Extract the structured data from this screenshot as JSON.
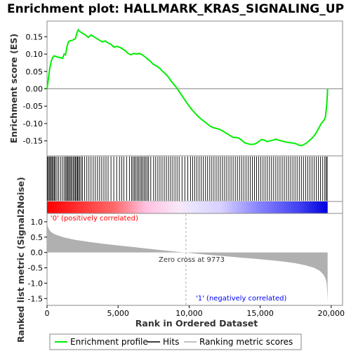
{
  "chart_data": [
    {
      "type": "line",
      "title": "Enrichment plot: HALLMARK_KRAS_SIGNALING_UP",
      "ylabel": "Enrichment score (ES)",
      "xlim": [
        0,
        20800
      ],
      "ylim": [
        -0.185,
        0.185
      ],
      "yticks": [
        "0.15",
        "0.10",
        "0.05",
        "0.00",
        "-0.05",
        "-0.10",
        "-0.15"
      ],
      "ytick_values": [
        0.15,
        0.1,
        0.05,
        0.0,
        -0.05,
        -0.1,
        -0.15
      ],
      "grid": false,
      "series": [
        {
          "name": "Enrichment profile",
          "color": "#00ee00",
          "x": [
            0,
            100,
            200,
            300,
            400,
            500,
            700,
            900,
            1100,
            1200,
            1300,
            1400,
            1500,
            1600,
            1800,
            2000,
            2100,
            2200,
            2300,
            2500,
            2700,
            2900,
            3100,
            3300,
            3500,
            3700,
            3900,
            4100,
            4300,
            4500,
            4700,
            4900,
            5100,
            5300,
            5500,
            5700,
            5900,
            6100,
            6300,
            6500,
            6700,
            6900,
            7100,
            7300,
            7500,
            7700,
            7900,
            8100,
            8300,
            8500,
            8700,
            8900,
            9100,
            9300,
            9500,
            9700,
            9900,
            10100,
            10300,
            10500,
            10700,
            10900,
            11100,
            11300,
            11500,
            11700,
            11900,
            12100,
            12300,
            12500,
            12700,
            12900,
            13100,
            13300,
            13500,
            13700,
            13900,
            14100,
            14300,
            14500,
            14700,
            14900,
            15100,
            15300,
            15500,
            15700,
            15900,
            16100,
            16300,
            16500,
            16700,
            16900,
            17100,
            17300,
            17500,
            17700,
            17900,
            18100,
            18300,
            18500,
            18700,
            18900,
            19100,
            19300,
            19500,
            19600,
            19700,
            19750
          ],
          "y": [
            0.0,
            0.03,
            0.06,
            0.08,
            0.09,
            0.095,
            0.092,
            0.09,
            0.088,
            0.1,
            0.098,
            0.12,
            0.135,
            0.138,
            0.14,
            0.145,
            0.16,
            0.17,
            0.165,
            0.16,
            0.155,
            0.148,
            0.155,
            0.15,
            0.145,
            0.14,
            0.135,
            0.138,
            0.132,
            0.128,
            0.12,
            0.122,
            0.12,
            0.115,
            0.11,
            0.102,
            0.098,
            0.102,
            0.1,
            0.102,
            0.098,
            0.092,
            0.085,
            0.078,
            0.07,
            0.066,
            0.06,
            0.052,
            0.044,
            0.036,
            0.024,
            0.014,
            0.004,
            -0.008,
            -0.02,
            -0.032,
            -0.044,
            -0.055,
            -0.065,
            -0.074,
            -0.082,
            -0.089,
            -0.095,
            -0.102,
            -0.108,
            -0.112,
            -0.114,
            -0.116,
            -0.12,
            -0.125,
            -0.13,
            -0.135,
            -0.14,
            -0.14,
            -0.142,
            -0.148,
            -0.155,
            -0.158,
            -0.16,
            -0.16,
            -0.158,
            -0.152,
            -0.146,
            -0.148,
            -0.152,
            -0.15,
            -0.148,
            -0.145,
            -0.148,
            -0.15,
            -0.152,
            -0.154,
            -0.155,
            -0.156,
            -0.158,
            -0.162,
            -0.164,
            -0.16,
            -0.155,
            -0.148,
            -0.14,
            -0.13,
            -0.115,
            -0.1,
            -0.09,
            -0.08,
            -0.04,
            0.0
          ]
        }
      ]
    },
    {
      "type": "scatter",
      "series": [
        {
          "name": "Hits",
          "color": "#000000",
          "x": [
            20,
            90,
            160,
            230,
            300,
            370,
            450,
            520,
            600,
            700,
            820,
            950,
            1080,
            1200,
            1300,
            1380,
            1450,
            1520,
            1600,
            1680,
            1760,
            1850,
            1930,
            2000,
            2080,
            2150,
            2220,
            2300,
            2400,
            2500,
            2650,
            2800,
            2950,
            3100,
            3250,
            3400,
            3550,
            3700,
            3850,
            4000,
            4150,
            4300,
            4500,
            4700,
            4900,
            5100,
            5250,
            5400,
            5600,
            5800,
            5950,
            6050,
            6150,
            6250,
            6350,
            6450,
            6550,
            6650,
            6750,
            6850,
            6950,
            7050,
            7150,
            7300,
            7500,
            7650,
            7800,
            7950,
            8100,
            8250,
            8400,
            8550,
            8700,
            8850,
            9000,
            9150,
            9300,
            9500,
            9700,
            9900,
            10100,
            10250,
            10400,
            10550,
            10700,
            10850,
            11000,
            11150,
            11300,
            11450,
            11600,
            11750,
            11900,
            12050,
            12200,
            12350,
            12500,
            12650,
            12800,
            12950,
            13100,
            13250,
            13400,
            13550,
            13700,
            13850,
            14000,
            14150,
            14300,
            14450,
            14600,
            14750,
            14900,
            15050,
            15200,
            15350,
            15500,
            15650,
            15800,
            15950,
            16100,
            16250,
            16400,
            16550,
            16700,
            16850,
            17000,
            17150,
            17300,
            17450,
            17600,
            17750,
            17900,
            18050,
            18200,
            18350,
            18500,
            18650,
            18800,
            18950,
            19100,
            19250,
            19400,
            19550,
            19650,
            19720
          ]
        }
      ]
    },
    {
      "type": "area",
      "ylabel": "Ranked list metric (Signal2Noise)",
      "xlabel": "Rank in Ordered Dataset",
      "xlim": [
        0,
        20800
      ],
      "ylim": [
        -1.7,
        1.25
      ],
      "xticks": [
        "0",
        "5,000",
        "10,000",
        "15,000",
        "20,000"
      ],
      "xtick_values": [
        0,
        5000,
        10000,
        15000,
        20000
      ],
      "yticks": [
        "1.0",
        "0.5",
        "0.0",
        "-0.5",
        "-1.0",
        "-1.5"
      ],
      "ytick_values": [
        1.0,
        0.5,
        0.0,
        -0.5,
        -1.0,
        -1.5
      ],
      "series": [
        {
          "name": "Ranking metric scores",
          "color": "#b0b0b0",
          "x": [
            0,
            50,
            150,
            300,
            500,
            800,
            1200,
            2000,
            3000,
            4000,
            5000,
            6000,
            7000,
            8000,
            9000,
            9773,
            10500,
            11500,
            12500,
            13500,
            14500,
            15500,
            16500,
            17500,
            18200,
            18800,
            19200,
            19450,
            19600,
            19680,
            19720,
            19750
          ],
          "y": [
            1.05,
            0.85,
            0.74,
            0.66,
            0.6,
            0.55,
            0.49,
            0.41,
            0.34,
            0.28,
            0.23,
            0.18,
            0.13,
            0.08,
            0.03,
            0.0,
            -0.04,
            -0.08,
            -0.12,
            -0.16,
            -0.2,
            -0.24,
            -0.29,
            -0.35,
            -0.42,
            -0.5,
            -0.6,
            -0.72,
            -0.85,
            -1.0,
            -1.3,
            -1.58
          ]
        }
      ],
      "annotations": {
        "positive_label": "'0' (positively correlated)",
        "negative_label": "'1' (negatively correlated)",
        "zero_cross_label": "Zero cross at 9773",
        "zero_cross_x": 9773
      }
    }
  ],
  "legend": {
    "placement": "bottom",
    "items": [
      {
        "label": "Enrichment profile",
        "color": "#00ee00"
      },
      {
        "label": "Hits",
        "color": "#000000"
      },
      {
        "label": "Ranking metric scores",
        "color": "#b0b0b0"
      }
    ]
  },
  "colors": {
    "positive_text": "#ff0000",
    "negative_text": "#0000ff",
    "heat_red": "#ff0000",
    "heat_pink": "#ffc0e0",
    "heat_lavender": "#d8d0ff",
    "heat_blue": "#0000dd"
  }
}
